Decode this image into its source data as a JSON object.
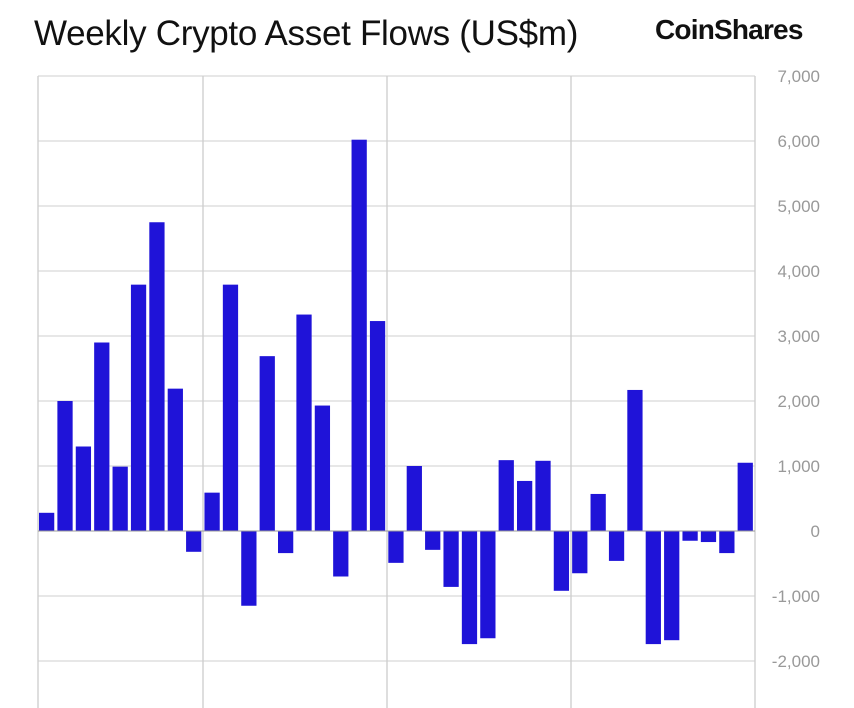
{
  "chart_data": {
    "type": "bar",
    "title": "Weekly Crypto Asset Flows (US$m)",
    "brand": "CoinShares",
    "xlabel": "",
    "ylabel": "",
    "ylim": [
      -2700,
      7000
    ],
    "yticks": [
      7000,
      6000,
      5000,
      4000,
      3000,
      2000,
      1000,
      0,
      -1000,
      -2000
    ],
    "ytick_labels": [
      "7,000",
      "6,000",
      "5,000",
      "4,000",
      "3,000",
      "2,000",
      "1,000",
      "0",
      "-1,000",
      "-2,000"
    ],
    "grid": true,
    "bar_color": "#1f13d8",
    "values": [
      280,
      2000,
      1300,
      2900,
      990,
      3790,
      4750,
      2190,
      -320,
      590,
      3790,
      -1150,
      2690,
      -340,
      3330,
      1930,
      -700,
      6020,
      3230,
      -490,
      1000,
      -290,
      -860,
      -1740,
      -1650,
      1090,
      770,
      1080,
      -920,
      -650,
      570,
      -460,
      2170,
      -1740,
      -1680,
      -150,
      -170,
      -340,
      1050
    ]
  }
}
